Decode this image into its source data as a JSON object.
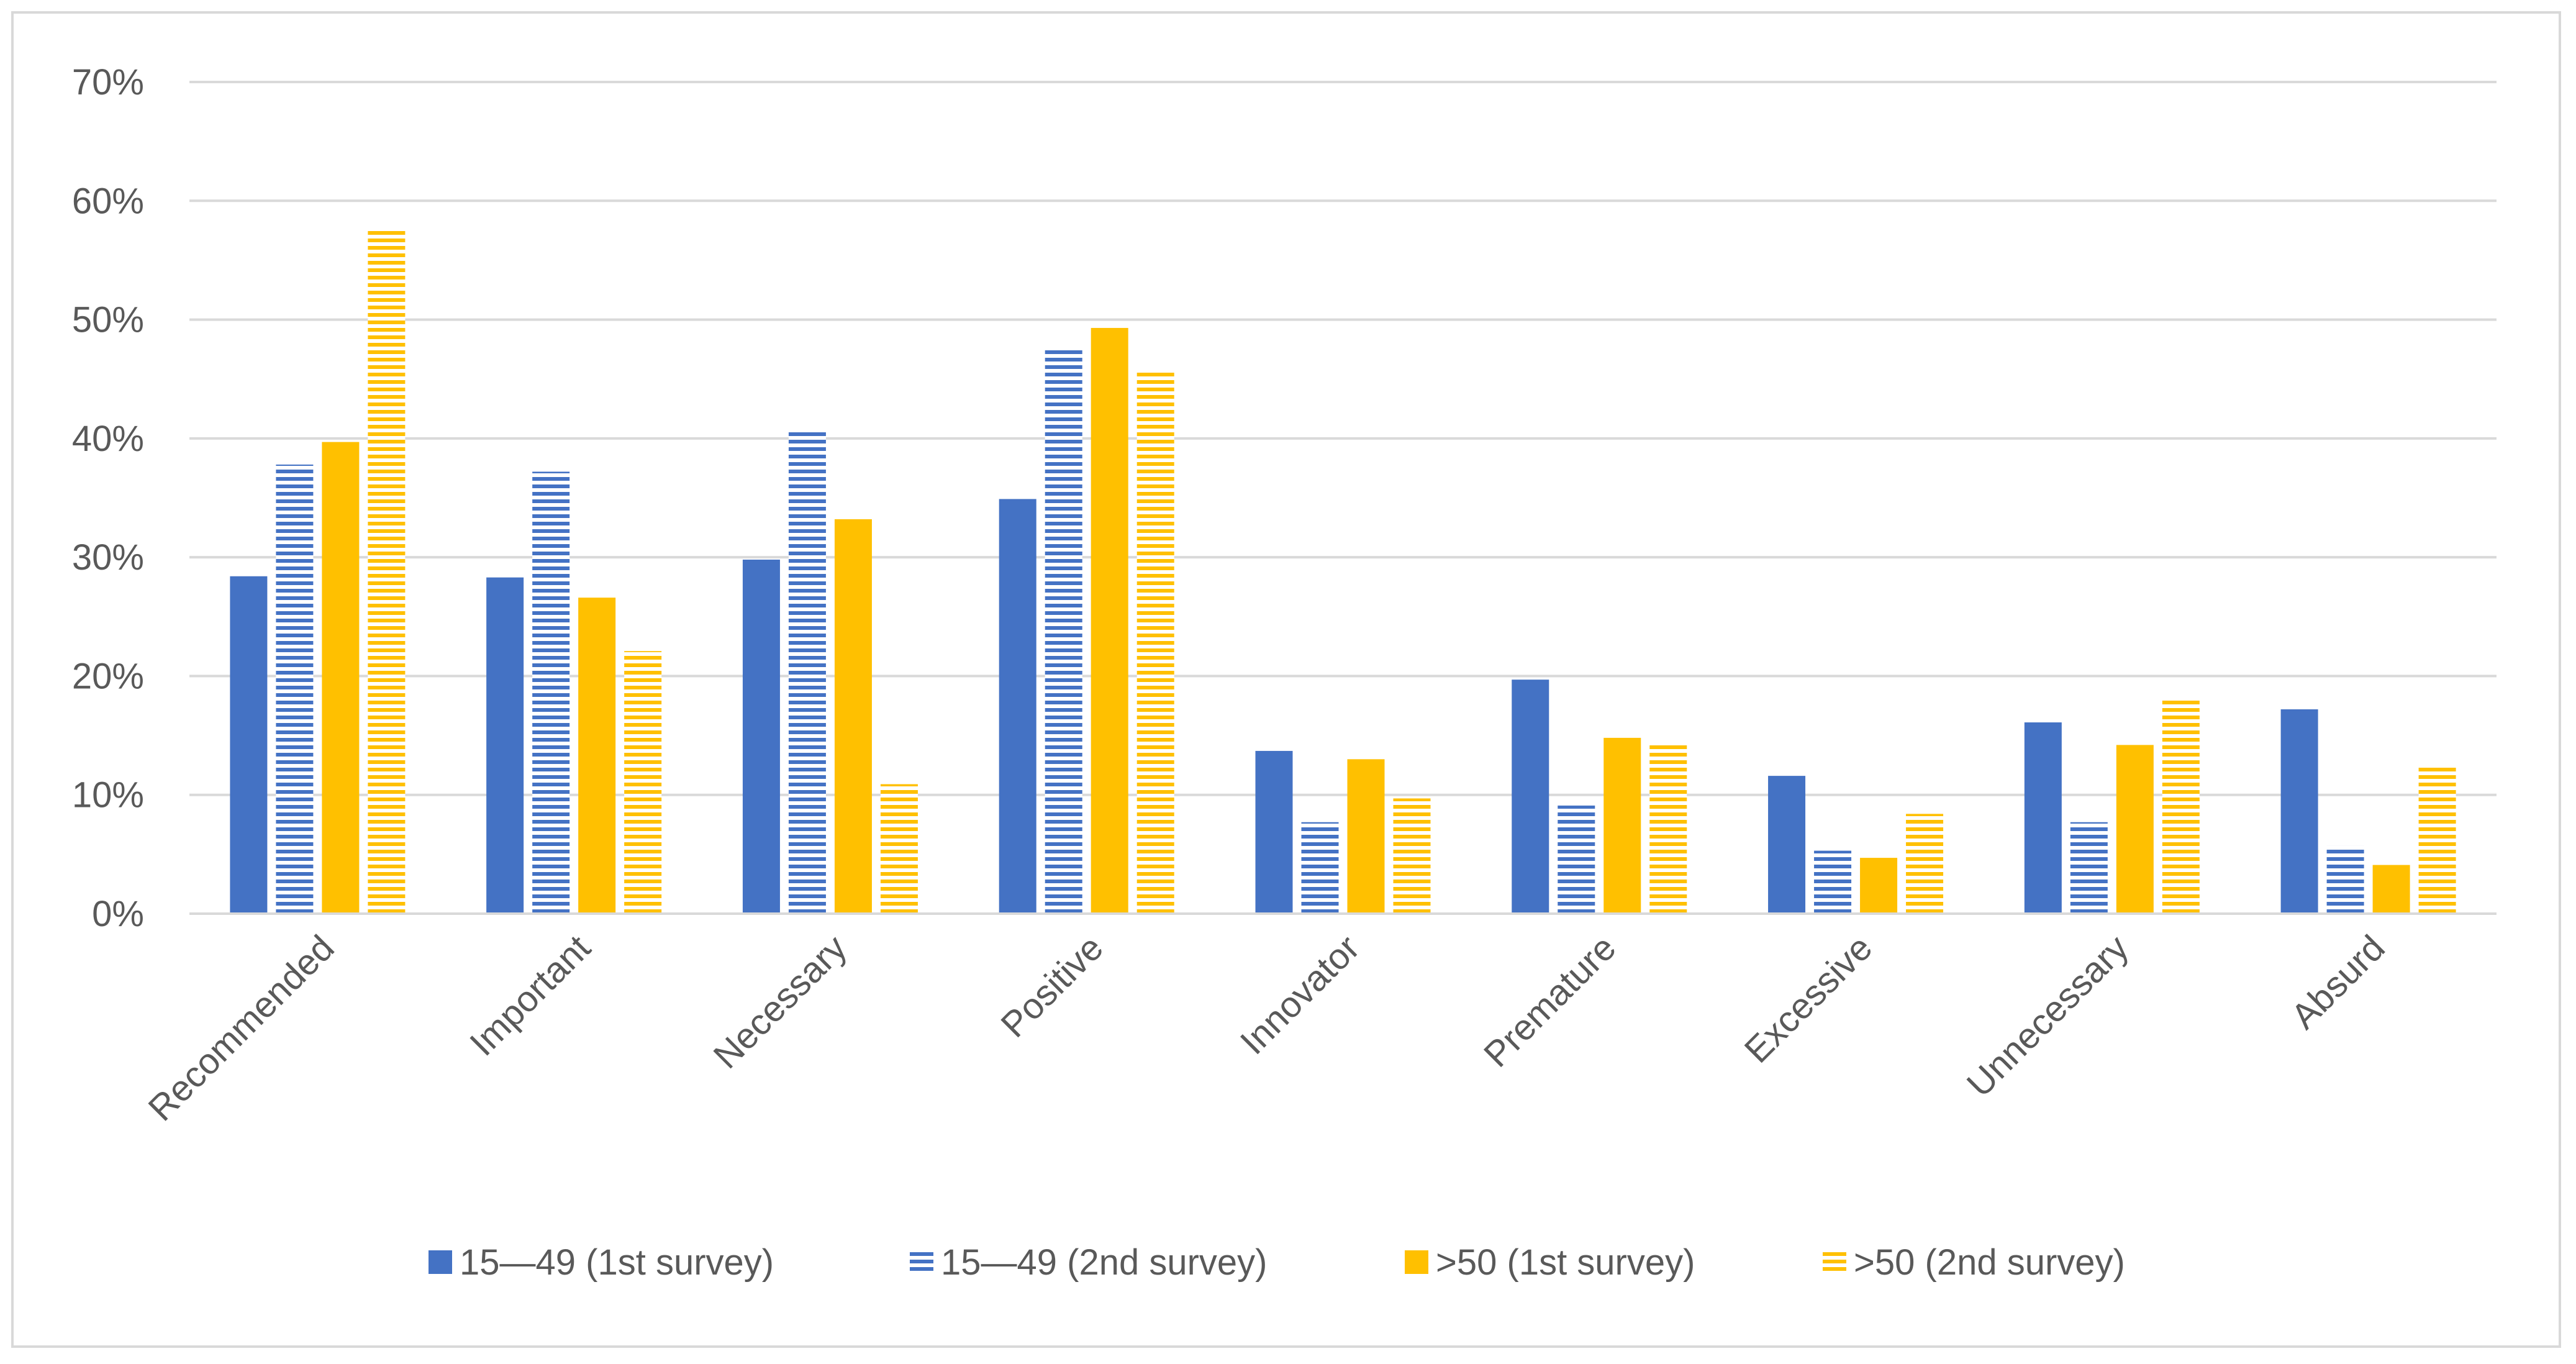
{
  "chart_data": {
    "type": "bar",
    "title": "",
    "xlabel": "",
    "ylabel": "",
    "ylim": [
      0,
      0.7
    ],
    "yticks": [
      0,
      0.1,
      0.2,
      0.3,
      0.4,
      0.5,
      0.6,
      0.7
    ],
    "ytick_labels": [
      "0%",
      "10%",
      "20%",
      "30%",
      "40%",
      "50%",
      "60%",
      "70%"
    ],
    "grid": true,
    "legend_position": "bottom",
    "categories": [
      "Recommended",
      "Important",
      "Necessary",
      "Positive",
      "Innovator",
      "Premature",
      "Excessive",
      "Unnecessary",
      "Absurd"
    ],
    "series": [
      {
        "name": "15—49 (1st survey)",
        "color": "#4472c4",
        "pattern": "solid",
        "values": [
          0.284,
          0.283,
          0.298,
          0.349,
          0.137,
          0.197,
          0.116,
          0.161,
          0.172
        ]
      },
      {
        "name": "15—49 (2nd survey)",
        "color": "#4472c4",
        "pattern": "horizontal-stripes",
        "values": [
          0.378,
          0.372,
          0.408,
          0.477,
          0.077,
          0.091,
          0.053,
          0.077,
          0.057
        ]
      },
      {
        "name": ">50 (1st survey)",
        "color": "#ffc000",
        "pattern": "solid",
        "values": [
          0.397,
          0.266,
          0.332,
          0.493,
          0.13,
          0.148,
          0.047,
          0.142,
          0.041
        ]
      },
      {
        "name": ">50 (2nd survey)",
        "color": "#ffc000",
        "pattern": "horizontal-stripes",
        "values": [
          0.575,
          0.221,
          0.109,
          0.456,
          0.097,
          0.143,
          0.084,
          0.182,
          0.123
        ]
      }
    ]
  }
}
